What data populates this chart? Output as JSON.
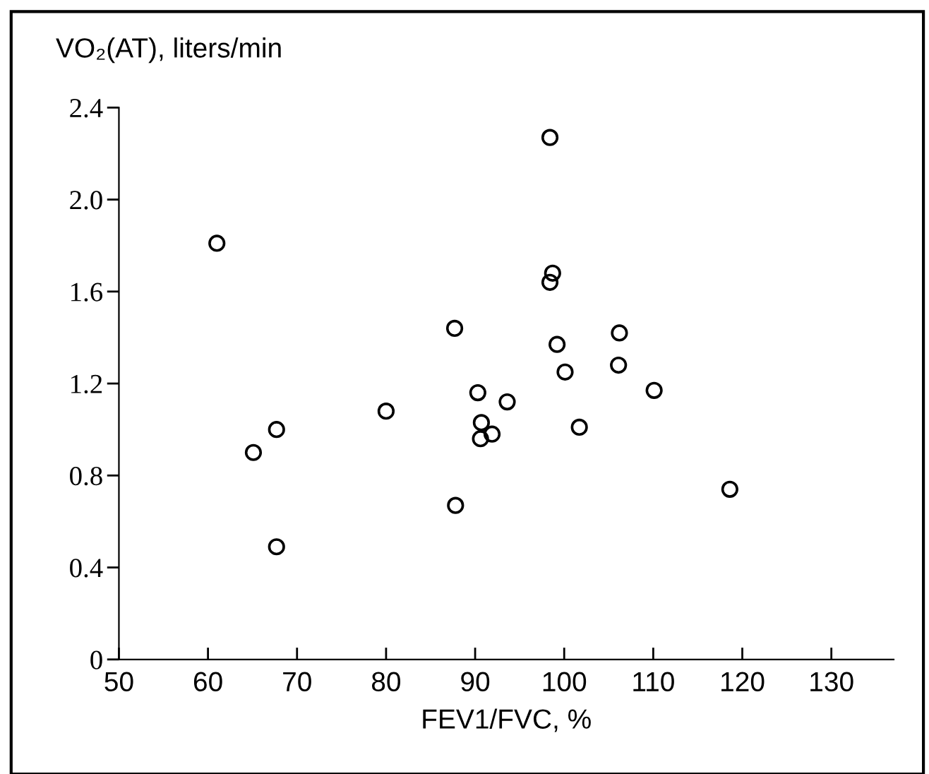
{
  "chart_data": {
    "type": "scatter",
    "xlabel": "FEV1/FVC, %",
    "ylabel": "VO₂(AT), liters/min",
    "x": [
      61.0,
      65.1,
      67.7,
      67.7,
      80.0,
      87.7,
      87.8,
      98.4,
      98.7,
      98.4,
      99.2,
      100.1,
      106.2,
      106.1,
      110.1,
      90.3,
      93.6,
      90.7,
      91.9,
      90.6,
      101.7,
      118.6
    ],
    "values": [
      1.81,
      0.9,
      1.0,
      0.49,
      1.08,
      1.44,
      0.67,
      2.27,
      1.68,
      1.64,
      1.37,
      1.25,
      1.42,
      1.28,
      1.17,
      1.16,
      1.12,
      1.03,
      0.98,
      0.96,
      1.01,
      0.74
    ],
    "color": "#000000",
    "marker": "circle",
    "xlim": [
      50,
      137
    ],
    "ylim": [
      0,
      2.4
    ],
    "xticks": [
      50,
      60,
      70,
      80,
      90,
      100,
      110,
      120,
      130
    ],
    "yticks": [
      0,
      0.4,
      0.8,
      1.2,
      1.6,
      {
        "value": 2,
        "label": "2.0"
      },
      2.4
    ],
    "grid": false
  }
}
